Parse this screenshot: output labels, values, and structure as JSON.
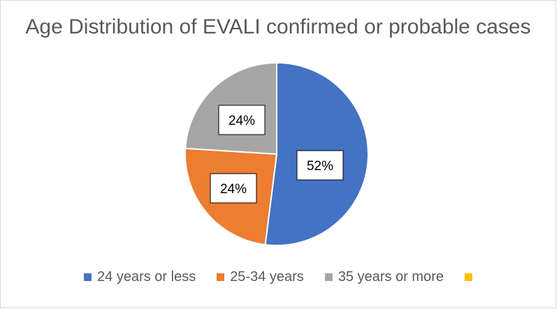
{
  "chart_data": {
    "type": "pie",
    "title": "Age Distribution of EVALI confirmed or probable cases",
    "categories": [
      "24 years or less",
      "25-34 years",
      "35 years or more",
      ""
    ],
    "values": [
      52,
      24,
      24,
      0
    ],
    "data_labels": [
      "52%",
      "24%",
      "24%",
      ""
    ],
    "colors": [
      "#4472c4",
      "#ed7d31",
      "#a5a5a5",
      "#ffc000"
    ],
    "legend_position": "bottom"
  }
}
